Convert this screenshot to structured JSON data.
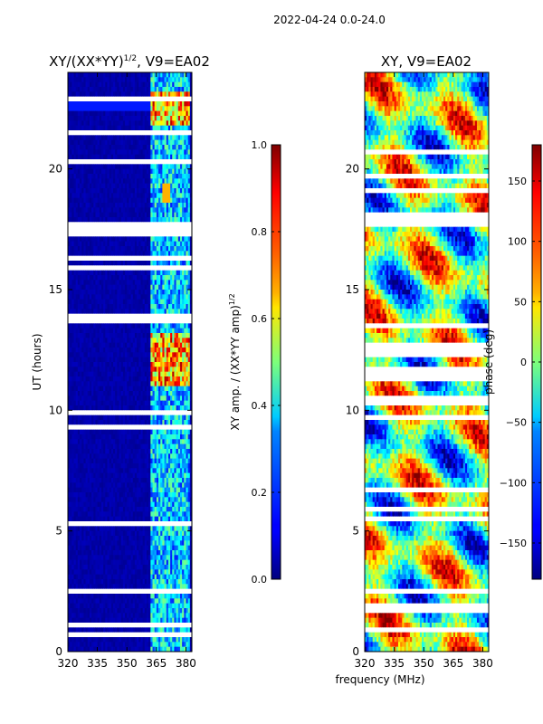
{
  "figure_title": "2022-04-24 0.0-24.0",
  "xlabel_shared": "frequency (MHz)",
  "chart_data": [
    {
      "type": "heatmap",
      "title": "XY/(XX*YY)^1/2, V9=EA02",
      "title_main": "XY/(XX*YY)",
      "title_sup": "1/2",
      "title_tail": ", V9=EA02",
      "xlabel": "frequency (MHz)",
      "ylabel": "UT (hours)",
      "xlim": [
        320,
        383
      ],
      "ylim": [
        0,
        24
      ],
      "xticks": [
        320,
        335,
        350,
        365,
        380
      ],
      "yticks": [
        0,
        5,
        10,
        15,
        20
      ],
      "colorbar": {
        "label": "XY amp. / (XX*YY amp)^1/2",
        "label_main": "XY amp. / (XX*YY amp)",
        "label_sup": "1/2",
        "range": [
          0.0,
          1.0
        ],
        "ticks": [
          "0.0",
          "0.2",
          "0.4",
          "0.6",
          "0.8",
          "1.0"
        ],
        "colormap": "jet"
      }
    },
    {
      "type": "heatmap",
      "title": "XY, V9=EA02",
      "xlabel": "frequency (MHz)",
      "ylabel": "",
      "xlim": [
        320,
        383
      ],
      "ylim": [
        0,
        24
      ],
      "xticks": [
        320,
        335,
        350,
        365,
        380
      ],
      "yticks": [
        0,
        5,
        10,
        15,
        20
      ],
      "colorbar": {
        "label": "phase (deg)",
        "range": [
          -180,
          180
        ],
        "ticks": [
          "−150",
          "−100",
          "−50",
          "0",
          "50",
          "100",
          "150"
        ],
        "colormap": "jet"
      }
    }
  ],
  "colors": {
    "background": "#ffffff",
    "frame": "#000000",
    "gap": "#ffffff"
  }
}
